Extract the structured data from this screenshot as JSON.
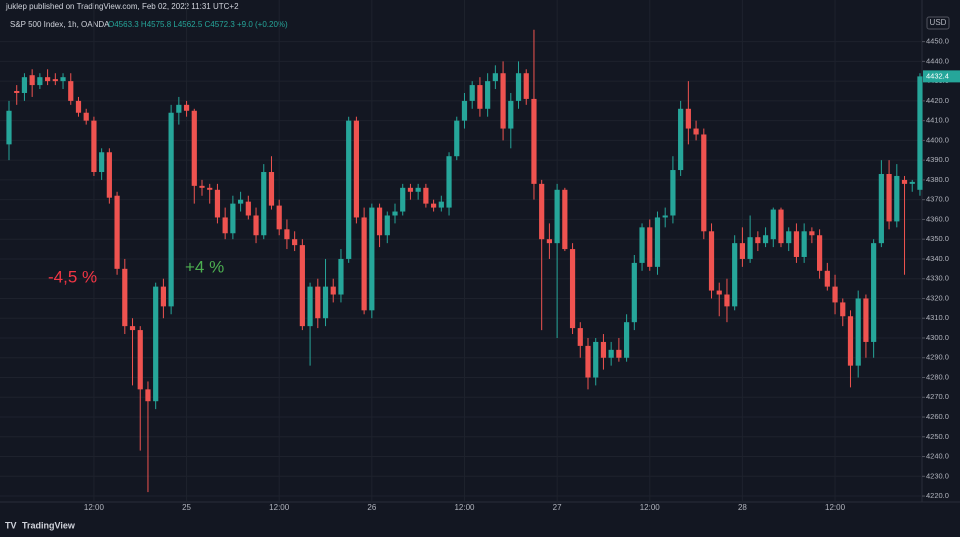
{
  "header": {
    "publisher": "juklep published on TradingView.com, Feb 02, 2022 11:31 UTC+2",
    "logo": "TradingView"
  },
  "chart_data": {
    "type": "candlestick",
    "symbol": "S&P 500 Index, 1h, OANDA",
    "ohlc_legend": "O4563.3 H4575.8 L4562.5 C4572.3 +9.0 (+0.20%)",
    "currency": "USD",
    "up_color": "#26a69a",
    "down_color": "#ef5350",
    "grid": true,
    "annotations": [
      {
        "text": "-4,5 %",
        "color": "#f23645"
      },
      {
        "text": "+4 %",
        "color": "#4caf50"
      }
    ],
    "categories": [
      null,
      null,
      null,
      null,
      null,
      null,
      null,
      null,
      null,
      null,
      null,
      "12:00",
      null,
      null,
      null,
      null,
      null,
      null,
      null,
      null,
      null,
      null,
      null,
      "25",
      null,
      null,
      null,
      null,
      null,
      null,
      null,
      null,
      null,
      null,
      null,
      "12:00",
      null,
      null,
      null,
      null,
      null,
      null,
      null,
      null,
      null,
      null,
      null,
      "26",
      null,
      null,
      null,
      null,
      null,
      null,
      null,
      null,
      null,
      null,
      null,
      "12:00",
      null,
      null,
      null,
      null,
      null,
      null,
      null,
      null,
      null,
      null,
      null,
      "27",
      null,
      null,
      null,
      null,
      null,
      null,
      null,
      null,
      null,
      null,
      null,
      "12:00",
      null,
      null,
      null,
      null,
      null,
      null,
      null,
      null,
      null,
      null,
      null,
      "28",
      null,
      null,
      null,
      null,
      null,
      null,
      null,
      null,
      null,
      null,
      null,
      "12:00",
      null,
      null,
      null,
      null,
      null,
      null,
      null,
      null,
      null,
      null,
      null
    ],
    "open": [
      4398,
      4425,
      4424,
      4433,
      4428,
      4432,
      4431,
      4430,
      4430,
      4420,
      4414,
      4410,
      4384,
      4394,
      4372,
      4335,
      4306,
      4304,
      4274,
      4268,
      4326,
      4316,
      4414,
      4418,
      4415,
      4377,
      4376,
      4375,
      4361,
      4353,
      4368,
      4369,
      4362,
      4352,
      4384,
      4367,
      4355,
      4350,
      4347,
      4306,
      4326,
      4310,
      4326,
      4322,
      4340,
      4410,
      4361,
      4314,
      4366,
      4352,
      4362,
      4364,
      4376,
      4374,
      4376,
      4368,
      4366,
      4366,
      4392,
      4410,
      4420,
      4428,
      4416,
      4430,
      4434,
      4406,
      4420,
      4434,
      4421,
      4378,
      4350,
      4348,
      4375,
      4345,
      4305,
      4296,
      4280,
      4298,
      4290,
      4294,
      4290,
      4308,
      4338,
      4356,
      4336,
      4361,
      4362,
      4385,
      4416,
      4406,
      4403,
      4354,
      4324,
      4322,
      4316,
      4348,
      4340,
      4351,
      4348,
      4350,
      4365,
      4348,
      4354,
      4341,
      4354,
      4352,
      4334,
      4326,
      4318,
      4311,
      4286,
      4320,
      4298,
      4348,
      4383,
      4359,
      4380,
      4378,
      4375
    ],
    "high": [
      4420,
      4428,
      4434,
      4436,
      4434,
      4436,
      4434,
      4434,
      4434,
      4422,
      4416,
      4412,
      4396,
      4396,
      4374,
      4340,
      4310,
      4306,
      4278,
      4328,
      4330,
      4418,
      4422,
      4420,
      4416,
      4380,
      4378,
      4378,
      4366,
      4372,
      4374,
      4372,
      4366,
      4388,
      4392,
      4370,
      4360,
      4354,
      4350,
      4328,
      4330,
      4340,
      4330,
      4345,
      4412,
      4412,
      4366,
      4368,
      4368,
      4364,
      4368,
      4378,
      4378,
      4378,
      4378,
      4370,
      4372,
      4394,
      4412,
      4424,
      4430,
      4432,
      4434,
      4438,
      4440,
      4424,
      4440,
      4436,
      4456,
      4380,
      4358,
      4378,
      4376,
      4348,
      4308,
      4300,
      4300,
      4302,
      4298,
      4300,
      4312,
      4342,
      4358,
      4360,
      4364,
      4366,
      4392,
      4420,
      4430,
      4410,
      4406,
      4358,
      4328,
      4330,
      4352,
      4356,
      4362,
      4354,
      4356,
      4366,
      4366,
      4356,
      4358,
      4358,
      4356,
      4355,
      4338,
      4332,
      4320,
      4314,
      4324,
      4322,
      4350,
      4390,
      4390,
      4388,
      4382,
      4380,
      4434
    ],
    "low": [
      4390,
      4418,
      4420,
      4422,
      4426,
      4428,
      4428,
      4426,
      4418,
      4412,
      4408,
      4382,
      4380,
      4368,
      4332,
      4302,
      4276,
      4243,
      4222,
      4264,
      4310,
      4312,
      4408,
      4412,
      4368,
      4372,
      4368,
      4358,
      4350,
      4350,
      4364,
      4360,
      4348,
      4350,
      4365,
      4352,
      4345,
      4344,
      4304,
      4286,
      4305,
      4306,
      4318,
      4318,
      4338,
      4358,
      4312,
      4310,
      4346,
      4348,
      4358,
      4362,
      4370,
      4370,
      4366,
      4364,
      4364,
      4362,
      4390,
      4406,
      4416,
      4412,
      4412,
      4426,
      4400,
      4396,
      4416,
      4418,
      4370,
      4304,
      4340,
      4300,
      4344,
      4302,
      4290,
      4274,
      4276,
      4284,
      4286,
      4288,
      4288,
      4304,
      4334,
      4334,
      4332,
      4356,
      4358,
      4382,
      4398,
      4400,
      4350,
      4320,
      4311,
      4308,
      4314,
      4336,
      4338,
      4344,
      4346,
      4346,
      4346,
      4344,
      4338,
      4338,
      4348,
      4330,
      4324,
      4312,
      4306,
      4275,
      4280,
      4290,
      4290,
      4346,
      4355,
      4356,
      4332,
      4374,
      4372
    ],
    "close": [
      4415,
      4424,
      4432,
      4428,
      4432,
      4430,
      4430,
      4432,
      4420,
      4414,
      4410,
      4384,
      4394,
      4371,
      4335,
      4306,
      4304,
      4274,
      4268,
      4326,
      4316,
      4414,
      4418,
      4415,
      4377,
      4376,
      4375,
      4361,
      4353,
      4368,
      4370,
      4362,
      4352,
      4384,
      4367,
      4355,
      4350,
      4347,
      4306,
      4326,
      4310,
      4326,
      4322,
      4340,
      4410,
      4361,
      4314,
      4366,
      4352,
      4362,
      4364,
      4376,
      4374,
      4376,
      4368,
      4366,
      4369,
      4392,
      4410,
      4420,
      4428,
      4416,
      4430,
      4434,
      4406,
      4420,
      4434,
      4421,
      4378,
      4350,
      4348,
      4375,
      4345,
      4305,
      4296,
      4280,
      4298,
      4290,
      4294,
      4290,
      4308,
      4338,
      4356,
      4336,
      4361,
      4362,
      4385,
      4416,
      4406,
      4403,
      4354,
      4324,
      4322,
      4316,
      4348,
      4340,
      4351,
      4348,
      4352,
      4365,
      4348,
      4354,
      4341,
      4354,
      4352,
      4334,
      4326,
      4318,
      4311,
      4286,
      4320,
      4298,
      4348,
      4383,
      4359,
      4382,
      4378,
      4379,
      4432.4
    ],
    "ylim": [
      4218,
      4466
    ],
    "yticks": [
      {
        "value": 4220,
        "label": "4220.0"
      },
      {
        "value": 4230,
        "label": "4230.0"
      },
      {
        "value": 4240,
        "label": "4240.0"
      },
      {
        "value": 4250,
        "label": "4250.0"
      },
      {
        "value": 4260,
        "label": "4260.0"
      },
      {
        "value": 4270,
        "label": "4270.0"
      },
      {
        "value": 4280,
        "label": "4280.0"
      },
      {
        "value": 4290,
        "label": "4290.0"
      },
      {
        "value": 4300,
        "label": "4300.0"
      },
      {
        "value": 4310,
        "label": "4310.0"
      },
      {
        "value": 4320,
        "label": "4320.0"
      },
      {
        "value": 4330,
        "label": "4330.0"
      },
      {
        "value": 4340,
        "label": "4340.0"
      },
      {
        "value": 4350,
        "label": "4350.0"
      },
      {
        "value": 4360,
        "label": "4360.0"
      },
      {
        "value": 4370,
        "label": "4370.0"
      },
      {
        "value": 4380,
        "label": "4380.0"
      },
      {
        "value": 4390,
        "label": "4390.0"
      },
      {
        "value": 4400,
        "label": "4400.0"
      },
      {
        "value": 4410,
        "label": "4410.0"
      },
      {
        "value": 4420,
        "label": "4420.0"
      },
      {
        "value": 4430,
        "label": "4430.0"
      },
      {
        "value": 4440,
        "label": "4440.0"
      },
      {
        "value": 4450,
        "label": "4450.0"
      }
    ]
  }
}
